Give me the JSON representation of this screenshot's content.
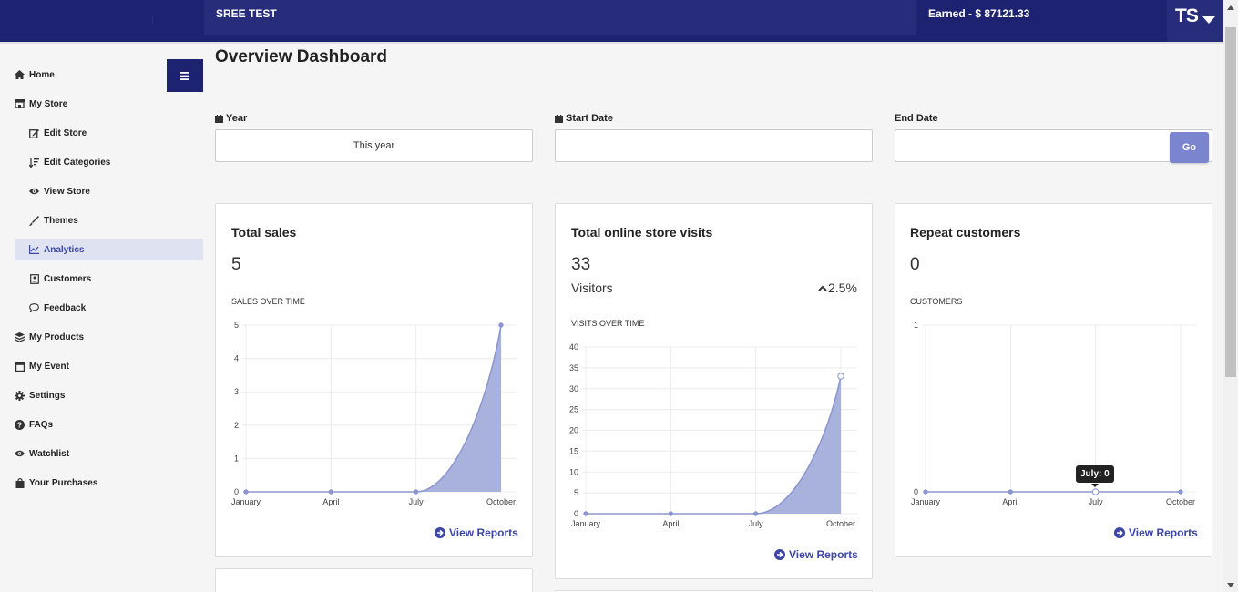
{
  "header": {
    "store_name": "SREE TEST",
    "earned": "Earned - $ 87121.33",
    "avatar_initials": "TS",
    "menu_icon": "hamburger-icon"
  },
  "sidebar": {
    "items": [
      {
        "label": "Home",
        "icon": "home-icon"
      },
      {
        "label": "My Store",
        "icon": "store-icon"
      },
      {
        "label": "Edit Store",
        "icon": "edit-icon",
        "sub": true
      },
      {
        "label": "Edit Categories",
        "icon": "sort-icon",
        "sub": true
      },
      {
        "label": "View Store",
        "icon": "eye-icon",
        "sub": true
      },
      {
        "label": "Themes",
        "icon": "brush-icon",
        "sub": true
      },
      {
        "label": "Analytics",
        "icon": "chart-icon",
        "sub": true,
        "active": true
      },
      {
        "label": "Customers",
        "icon": "contact-icon",
        "sub": true
      },
      {
        "label": "Feedback",
        "icon": "comment-icon",
        "sub": true
      },
      {
        "label": "My Products",
        "icon": "layers-icon"
      },
      {
        "label": "My Event",
        "icon": "calendar-icon"
      },
      {
        "label": "Settings",
        "icon": "gear-icon"
      },
      {
        "label": "FAQs",
        "icon": "question-icon"
      },
      {
        "label": "Watchlist",
        "icon": "eye-icon"
      },
      {
        "label": "Your Purchases",
        "icon": "bag-icon"
      }
    ]
  },
  "main": {
    "title": "Overview Dashboard",
    "filters": {
      "year_label": "Year",
      "year_value": "This year",
      "start_label": "Start Date",
      "start_value": "",
      "end_label": "End Date",
      "end_value": "",
      "go_label": "Go"
    },
    "cards": [
      {
        "title": "Total sales",
        "value": "5",
        "caption": "SALES OVER TIME",
        "link": "View Reports"
      },
      {
        "title": "Total online store visits",
        "value": "33",
        "sub_label": "Visitors",
        "change": "2.5%",
        "caption": "VISITS OVER TIME",
        "link": "View Reports"
      },
      {
        "title": "Repeat customers",
        "value": "0",
        "caption": "CUSTOMERS",
        "link": "View Reports",
        "tooltip": "July: 0"
      }
    ]
  },
  "colors": {
    "navy": "#1d2370",
    "accent": "#3b46a5",
    "area_fill": "#a9b2dc",
    "go_button": "#7b84cf"
  },
  "chart_data": [
    {
      "type": "area",
      "title": "",
      "x": [
        "January",
        "April",
        "July",
        "October"
      ],
      "series": [
        {
          "values": [
            0,
            0,
            0,
            5
          ]
        }
      ],
      "ylim": [
        0,
        5
      ],
      "yticks": [
        0,
        1,
        2,
        3,
        4,
        5
      ],
      "grid": true
    },
    {
      "type": "area",
      "title": "",
      "x": [
        "January",
        "April",
        "July",
        "October"
      ],
      "series": [
        {
          "values": [
            0,
            0,
            0,
            33
          ]
        }
      ],
      "ylim": [
        0,
        40
      ],
      "yticks": [
        0,
        5,
        10,
        15,
        20,
        25,
        30,
        35,
        40
      ],
      "grid": true
    },
    {
      "type": "line",
      "title": "",
      "x": [
        "January",
        "April",
        "July",
        "October"
      ],
      "series": [
        {
          "values": [
            0,
            0,
            0,
            0
          ]
        }
      ],
      "ylim": [
        0,
        1
      ],
      "yticks": [
        0,
        1
      ],
      "grid": true
    }
  ]
}
